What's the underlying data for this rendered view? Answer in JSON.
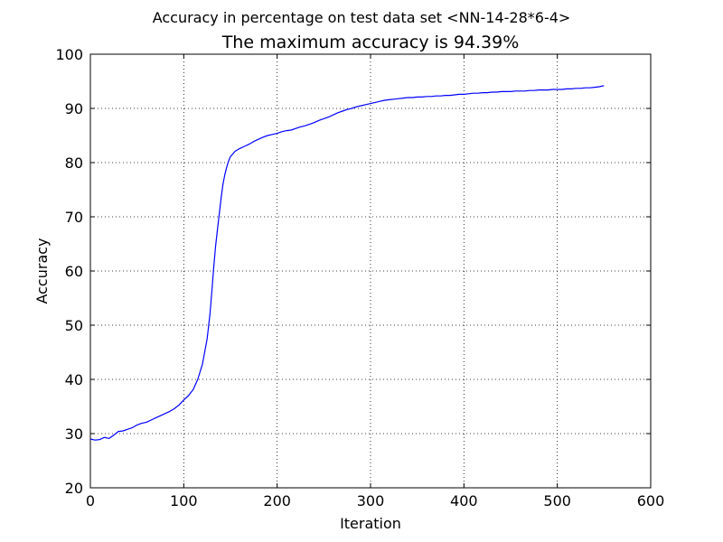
{
  "chart_data": {
    "type": "line",
    "suptitle": "Accuracy in percentage on test data set <NN-14-28*6-4>",
    "title": "The maximum accuracy is 94.39%",
    "xlabel": "Iteration",
    "ylabel": "Accuracy",
    "xlim": [
      0,
      600
    ],
    "ylim": [
      20,
      100
    ],
    "xticks": [
      "0",
      "100",
      "200",
      "300",
      "400",
      "500",
      "600"
    ],
    "yticks": [
      "20",
      "30",
      "40",
      "50",
      "60",
      "70",
      "80",
      "90",
      "100"
    ],
    "grid": true,
    "grid_style": "dotted",
    "series": [
      {
        "color": "#0000ff",
        "x": [
          0,
          5,
          10,
          15,
          20,
          25,
          30,
          35,
          40,
          45,
          50,
          55,
          60,
          65,
          70,
          75,
          80,
          85,
          90,
          95,
          100,
          105,
          110,
          115,
          120,
          125,
          128,
          130,
          132,
          134,
          136,
          138,
          140,
          142,
          144,
          146,
          148,
          150,
          155,
          160,
          165,
          170,
          175,
          180,
          185,
          190,
          195,
          200,
          205,
          210,
          215,
          220,
          225,
          230,
          235,
          240,
          245,
          250,
          255,
          260,
          265,
          270,
          275,
          280,
          285,
          290,
          295,
          300,
          305,
          310,
          315,
          320,
          325,
          330,
          335,
          340,
          345,
          350,
          355,
          360,
          365,
          370,
          375,
          380,
          385,
          390,
          395,
          400,
          405,
          410,
          415,
          420,
          425,
          430,
          435,
          440,
          445,
          450,
          455,
          460,
          465,
          470,
          475,
          480,
          485,
          490,
          495,
          500,
          505,
          510,
          515,
          520,
          525,
          530,
          535,
          540,
          545,
          550
        ],
        "y": [
          29.0,
          28.8,
          28.9,
          29.3,
          29.1,
          29.7,
          30.4,
          30.5,
          30.8,
          31.1,
          31.6,
          31.9,
          32.1,
          32.5,
          32.9,
          33.3,
          33.7,
          34.1,
          34.6,
          35.3,
          36.2,
          37.0,
          38.1,
          40.0,
          42.8,
          47.5,
          52.0,
          56.0,
          60.5,
          64.5,
          67.5,
          70.5,
          73.5,
          76.0,
          77.8,
          79.2,
          80.3,
          81.1,
          82.1,
          82.6,
          83.0,
          83.4,
          83.9,
          84.3,
          84.7,
          85.0,
          85.2,
          85.4,
          85.7,
          85.9,
          86.0,
          86.3,
          86.6,
          86.8,
          87.1,
          87.4,
          87.8,
          88.1,
          88.4,
          88.8,
          89.2,
          89.5,
          89.8,
          90.0,
          90.3,
          90.5,
          90.7,
          90.9,
          91.1,
          91.3,
          91.5,
          91.6,
          91.7,
          91.8,
          91.9,
          92.0,
          92.0,
          92.1,
          92.1,
          92.2,
          92.2,
          92.3,
          92.3,
          92.4,
          92.4,
          92.5,
          92.6,
          92.6,
          92.7,
          92.8,
          92.8,
          92.9,
          92.9,
          93.0,
          93.0,
          93.1,
          93.1,
          93.1,
          93.2,
          93.2,
          93.2,
          93.3,
          93.3,
          93.4,
          93.4,
          93.4,
          93.5,
          93.5,
          93.5,
          93.6,
          93.6,
          93.7,
          93.7,
          93.8,
          93.8,
          93.9,
          94.0,
          94.2
        ]
      }
    ]
  }
}
